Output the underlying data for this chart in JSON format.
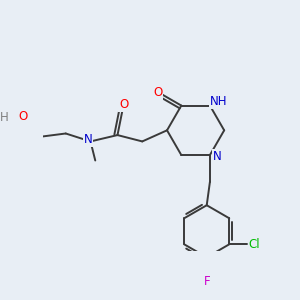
{
  "bg_color": "#e8eef5",
  "bond_color": "#3a3a3a",
  "atom_colors": {
    "O": "#ff0000",
    "N": "#0000cc",
    "H": "#808080",
    "Cl": "#00bb00",
    "F": "#cc00cc",
    "C": "#3a3a3a"
  }
}
